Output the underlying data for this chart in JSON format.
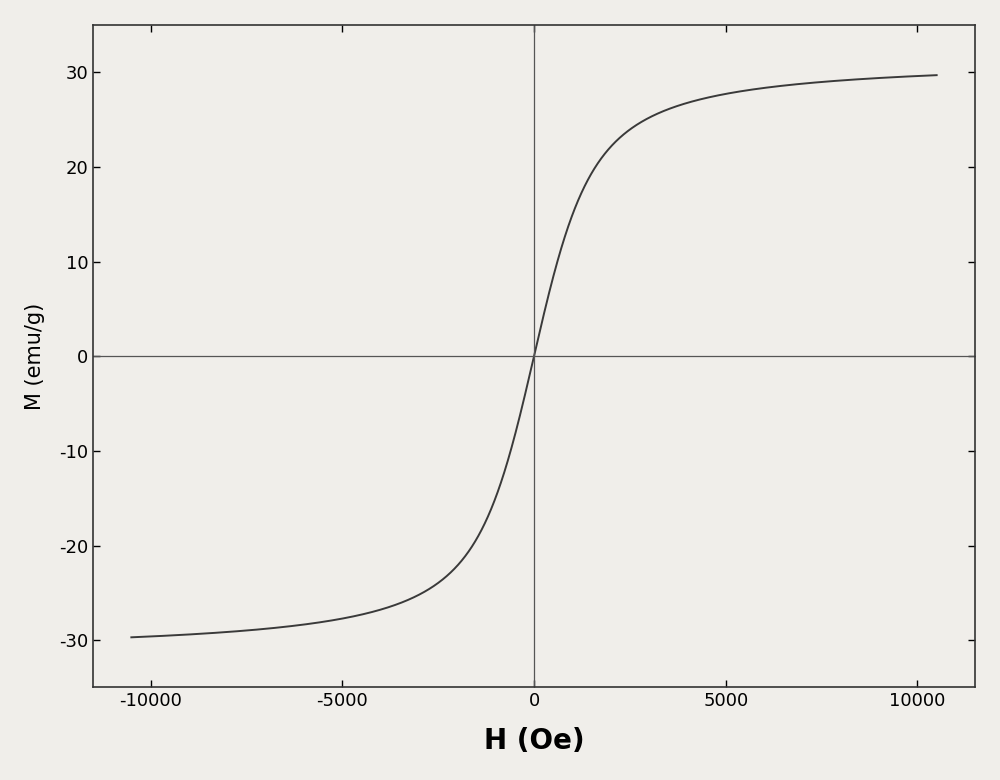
{
  "title": "",
  "xlabel": "H (Oe)",
  "ylabel": "M (emu/g)",
  "xlim": [
    -11500,
    11500
  ],
  "ylim": [
    -35,
    35
  ],
  "xticks": [
    -10000,
    -5000,
    0,
    5000,
    10000
  ],
  "yticks": [
    -30,
    -20,
    -10,
    0,
    10,
    20,
    30
  ],
  "saturation_magnetization": 31.5,
  "langevin_a": 600,
  "line_color": "#3a3a3a",
  "line_width": 1.4,
  "background_color": "#f0eeea",
  "xlabel_fontsize": 20,
  "xlabel_fontweight": "bold",
  "ylabel_fontsize": 15,
  "tick_fontsize": 13,
  "axisline_color": "#555555",
  "spine_color": "#333333",
  "spine_linewidth": 1.2
}
